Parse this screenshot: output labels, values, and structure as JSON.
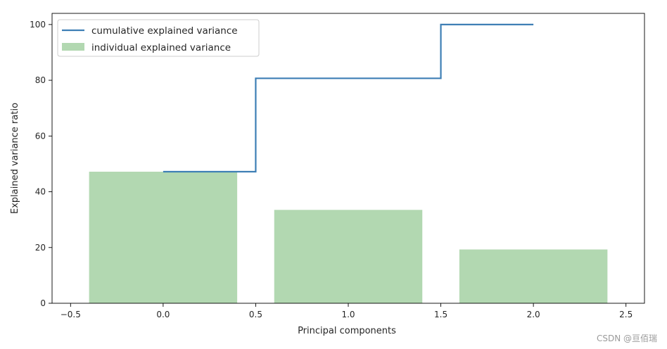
{
  "chart_data": {
    "type": "bar",
    "xlabel": "Principal components",
    "ylabel": "Explained variance ratio",
    "xlim": [
      -0.6,
      2.6
    ],
    "ylim": [
      0,
      104
    ],
    "xticks": [
      -0.5,
      0.0,
      0.5,
      1.0,
      1.5,
      2.0,
      2.5
    ],
    "xtick_labels": [
      "−0.5",
      "0.0",
      "0.5",
      "1.0",
      "1.5",
      "2.0",
      "2.5"
    ],
    "yticks": [
      0,
      20,
      40,
      60,
      80,
      100
    ],
    "ytick_labels": [
      "0",
      "20",
      "40",
      "60",
      "80",
      "100"
    ],
    "grid": false,
    "legend_position": "top-left",
    "colors": {
      "bar": "#b2d8b1",
      "line": "#3e7fb5"
    },
    "series": [
      {
        "name": "cumulative explained variance",
        "type": "step",
        "x": [
          0,
          1,
          2
        ],
        "values": [
          47.2,
          80.7,
          100.0
        ]
      },
      {
        "name": "individual explained variance",
        "type": "bar",
        "x": [
          0,
          1,
          2
        ],
        "values": [
          47.2,
          33.5,
          19.3
        ]
      }
    ]
  },
  "watermark": "CSDN @亘佰瑞"
}
